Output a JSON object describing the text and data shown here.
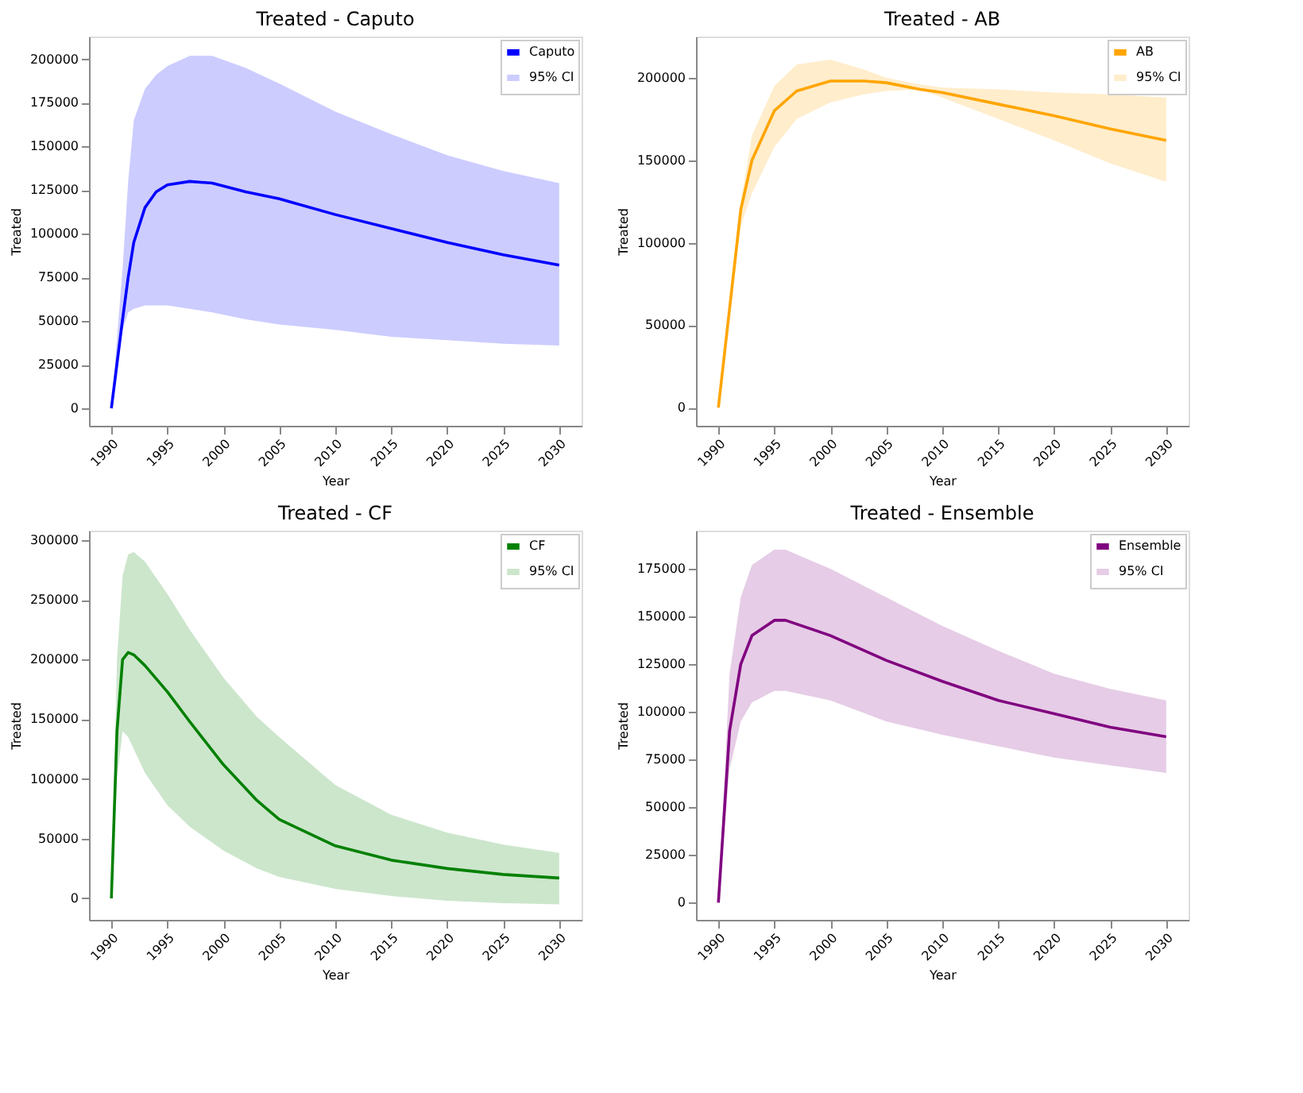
{
  "chart_data": [
    {
      "type": "line",
      "title": "Treated - Caputo",
      "xlabel": "Year",
      "ylabel": "Treated",
      "xlim": [
        1988,
        2032
      ],
      "xticks": [
        1990,
        1995,
        2000,
        2005,
        2010,
        2015,
        2020,
        2025,
        2030
      ],
      "ylim": [
        -10000,
        213000
      ],
      "yticks": [
        0,
        25000,
        50000,
        75000,
        100000,
        125000,
        150000,
        175000,
        200000
      ],
      "grid": false,
      "legend": "top right",
      "line_style": "solid",
      "marker": "none",
      "annotations": [
        "95% CI"
      ],
      "series": [
        {
          "name": "Caputo",
          "color": "#0000ff",
          "x": [
            1990,
            1991,
            1991.5,
            1992,
            1993,
            1994,
            1995,
            1997,
            1999,
            2002,
            2005,
            2010,
            2015,
            2020,
            2025,
            2030
          ],
          "values": [
            0,
            51000,
            75000,
            95000,
            115000,
            124000,
            128000,
            130000,
            129000,
            124000,
            120000,
            111000,
            103000,
            95000,
            88000,
            82000
          ],
          "lower": [
            0,
            45000,
            55000,
            57000,
            59000,
            59000,
            59000,
            57000,
            55000,
            51000,
            48000,
            45000,
            41000,
            39000,
            37000,
            36000
          ],
          "upper": [
            0,
            80000,
            130000,
            165000,
            183000,
            191000,
            196000,
            202000,
            202000,
            195000,
            186000,
            170000,
            157000,
            145000,
            136000,
            129000
          ]
        }
      ]
    },
    {
      "type": "line",
      "title": "Treated - AB",
      "xlabel": "Year",
      "ylabel": "Treated",
      "xlim": [
        1988,
        2032
      ],
      "xticks": [
        1990,
        1995,
        2000,
        2005,
        2010,
        2015,
        2020,
        2025,
        2030
      ],
      "ylim": [
        -11000,
        225000
      ],
      "yticks": [
        0,
        50000,
        100000,
        150000,
        200000
      ],
      "grid": false,
      "legend": "top right",
      "line_style": "solid",
      "marker": "none",
      "annotations": [
        "95% CI"
      ],
      "series": [
        {
          "name": "AB",
          "color": "#ffa500",
          "x": [
            1990,
            1992,
            1993,
            1995,
            1997,
            2000,
            2003,
            2005,
            2008,
            2010,
            2015,
            2020,
            2025,
            2030
          ],
          "values": [
            0,
            120000,
            150000,
            180000,
            192000,
            198000,
            198000,
            197000,
            193000,
            191000,
            184000,
            177000,
            169000,
            162000
          ],
          "lower": [
            0,
            110000,
            130000,
            158000,
            175000,
            185000,
            190000,
            192000,
            193000,
            188000,
            175000,
            162000,
            148000,
            137000
          ],
          "upper": [
            0,
            125000,
            165000,
            195000,
            208000,
            211000,
            205000,
            200000,
            196000,
            194000,
            193000,
            191000,
            190000,
            188000
          ]
        }
      ]
    },
    {
      "type": "line",
      "title": "Treated - CF",
      "xlabel": "Year",
      "ylabel": "Treated",
      "xlim": [
        1988,
        2032
      ],
      "xticks": [
        1990,
        1995,
        2000,
        2005,
        2010,
        2015,
        2020,
        2025,
        2030
      ],
      "ylim": [
        -18000,
        308000
      ],
      "yticks": [
        0,
        50000,
        100000,
        150000,
        200000,
        250000,
        300000
      ],
      "grid": false,
      "legend": "top right",
      "line_style": "solid",
      "marker": "none",
      "annotations": [
        "95% CI"
      ],
      "series": [
        {
          "name": "CF",
          "color": "#008000",
          "x": [
            1990,
            1990.5,
            1991,
            1991.5,
            1992,
            1993,
            1995,
            1997,
            2000,
            2003,
            2005,
            2010,
            2015,
            2020,
            2025,
            2030
          ],
          "values": [
            0,
            140000,
            200000,
            206000,
            204000,
            195000,
            173000,
            148000,
            112000,
            82000,
            66000,
            44000,
            32000,
            25000,
            20000,
            17000
          ],
          "lower": [
            0,
            100000,
            140000,
            135000,
            125000,
            105000,
            78000,
            60000,
            40000,
            25000,
            18000,
            8000,
            2000,
            -2000,
            -4000,
            -5000
          ],
          "upper": [
            0,
            200000,
            270000,
            288000,
            290000,
            282000,
            255000,
            225000,
            185000,
            152000,
            135000,
            95000,
            70000,
            55000,
            45000,
            38000
          ]
        }
      ]
    },
    {
      "type": "line",
      "title": "Treated - Ensemble",
      "xlabel": "Year",
      "ylabel": "Treated",
      "xlim": [
        1988,
        2032
      ],
      "xticks": [
        1990,
        1995,
        2000,
        2005,
        2010,
        2015,
        2020,
        2025,
        2030
      ],
      "ylim": [
        -9000,
        195000
      ],
      "yticks": [
        0,
        25000,
        50000,
        75000,
        100000,
        125000,
        150000,
        175000
      ],
      "grid": false,
      "legend": "top right",
      "line_style": "solid",
      "marker": "none",
      "annotations": [
        "95% CI"
      ],
      "series": [
        {
          "name": "Ensemble",
          "color": "#800080",
          "x": [
            1990,
            1991,
            1992,
            1993,
            1995,
            1996,
            2000,
            2005,
            2010,
            2015,
            2020,
            2025,
            2030
          ],
          "values": [
            0,
            90000,
            125000,
            140000,
            148000,
            148000,
            140000,
            127000,
            116000,
            106000,
            99000,
            92000,
            87000
          ],
          "lower": [
            0,
            70000,
            95000,
            105000,
            111000,
            111000,
            106000,
            95000,
            88000,
            82000,
            76000,
            72000,
            68000
          ],
          "upper": [
            0,
            120000,
            160000,
            177000,
            185000,
            185000,
            175000,
            160000,
            145000,
            132000,
            120000,
            112000,
            106000
          ]
        }
      ]
    }
  ]
}
